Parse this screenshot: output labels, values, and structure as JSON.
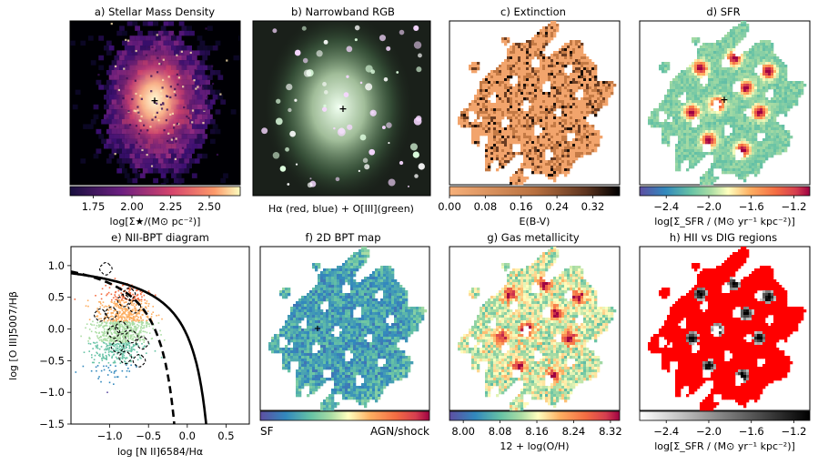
{
  "figure": {
    "panels": [
      {
        "id": "a",
        "title": "a) Stellar Mass Density",
        "kind": "stellar-mass",
        "colorbar": {
          "scheme": "magma",
          "ticks": [
            "1.75",
            "2.00",
            "2.25",
            "2.50"
          ],
          "tick_values": [
            1.75,
            2.0,
            2.25,
            2.5
          ],
          "range": [
            1.6,
            2.7
          ],
          "label": "log[Σ★/(M⊙ pc⁻²)]"
        }
      },
      {
        "id": "b",
        "title": "b) Narrowband RGB",
        "kind": "rgb",
        "caption": "Hα (red, blue) + O[III](green)"
      },
      {
        "id": "c",
        "title": "c) Extinction",
        "kind": "extinction",
        "colorbar": {
          "scheme": "copper",
          "ticks": [
            "0.00",
            "0.08",
            "0.16",
            "0.24",
            "0.32"
          ],
          "tick_values": [
            0.0,
            0.08,
            0.16,
            0.24,
            0.32
          ],
          "range": [
            0.0,
            0.38
          ],
          "label": "E(B-V)"
        }
      },
      {
        "id": "d",
        "title": "d) SFR",
        "kind": "sfr",
        "colorbar": {
          "scheme": "spectral",
          "ticks": [
            "−2.4",
            "−2.0",
            "−1.6",
            "−1.2"
          ],
          "tick_values": [
            -2.4,
            -2.0,
            -1.6,
            -1.2
          ],
          "range": [
            -2.65,
            -1.05
          ],
          "label": "log[Σ_SFR / (M⊙ yr⁻¹ kpc⁻²)]"
        }
      },
      {
        "id": "f",
        "title": "f) 2D BPT map",
        "kind": "bpt-map",
        "colorbar": {
          "scheme": "spectral",
          "end_labels": [
            "SF",
            "AGN/shock"
          ],
          "label": ""
        }
      },
      {
        "id": "g",
        "title": "g) Gas metallicity",
        "kind": "metallicity",
        "colorbar": {
          "scheme": "spectral",
          "ticks": [
            "8.00",
            "8.08",
            "8.16",
            "8.24",
            "8.32"
          ],
          "tick_values": [
            8.0,
            8.08,
            8.16,
            8.24,
            8.32
          ],
          "range": [
            7.97,
            8.34
          ],
          "label": "12 + log(O/H)"
        }
      },
      {
        "id": "h",
        "title": "h) HII vs DIG regions",
        "kind": "hii-dig",
        "colorbar": {
          "scheme": "grey",
          "ticks": [
            "−2.4",
            "−2.0",
            "−1.6",
            "−1.2"
          ],
          "tick_values": [
            -2.4,
            -2.0,
            -1.6,
            -1.2
          ],
          "range": [
            -2.65,
            -1.05
          ],
          "label": "log[Σ_SFR / (M⊙ yr⁻¹ kpc⁻²)]"
        }
      }
    ]
  },
  "chart_data": {
    "type": "scatter",
    "title": "e) NII-BPT diagram",
    "xlabel": "log [N II]6584/Hα",
    "ylabel": "log [O III]5007/Hβ",
    "xlim": [
      -1.5,
      0.8
    ],
    "ylim": [
      -1.5,
      1.3
    ],
    "xticks": [
      -1.0,
      -0.5,
      0.0,
      0.5
    ],
    "xtick_labels": [
      "−1.0",
      "−0.5",
      "0.0",
      "0.5"
    ],
    "yticks": [
      -1.5,
      -1.0,
      -0.5,
      0.0,
      0.5,
      1.0
    ],
    "ytick_labels": [
      "−1.5",
      "−1.0",
      "−0.5",
      "0.0",
      "0.5",
      "1.0"
    ],
    "series": [
      {
        "name": "Kewley 2001 max starburst",
        "style": "solid",
        "equation": "y = 0.61/(x - 0.47) + 1.19"
      },
      {
        "name": "Kauffmann 2003 demarcation",
        "style": "dashed",
        "equation": "y = 0.61/(x - 0.05) + 1.3"
      },
      {
        "name": "spaxels",
        "style": "points",
        "cloud": {
          "center": [
            -0.85,
            0.05
          ],
          "spread": [
            0.18,
            0.32
          ],
          "count": 1100
        },
        "colors": [
          "#5e4fa2",
          "#3288bd",
          "#66c2a5",
          "#abdda4",
          "#fdae61",
          "#f46d43"
        ]
      },
      {
        "name": "HII regions",
        "style": "dashed-contours",
        "points": [
          [
            -1.05,
            0.95
          ],
          [
            -0.82,
            0.45
          ],
          [
            -0.75,
            0.55
          ],
          [
            -0.68,
            0.35
          ],
          [
            -0.98,
            0.25
          ],
          [
            -1.12,
            0.22
          ],
          [
            -0.95,
            -0.05
          ],
          [
            -0.85,
            0.02
          ],
          [
            -0.72,
            -0.12
          ],
          [
            -0.58,
            -0.22
          ],
          [
            -0.9,
            -0.28
          ],
          [
            -0.8,
            -0.45
          ],
          [
            -0.62,
            -0.5
          ]
        ]
      }
    ]
  }
}
